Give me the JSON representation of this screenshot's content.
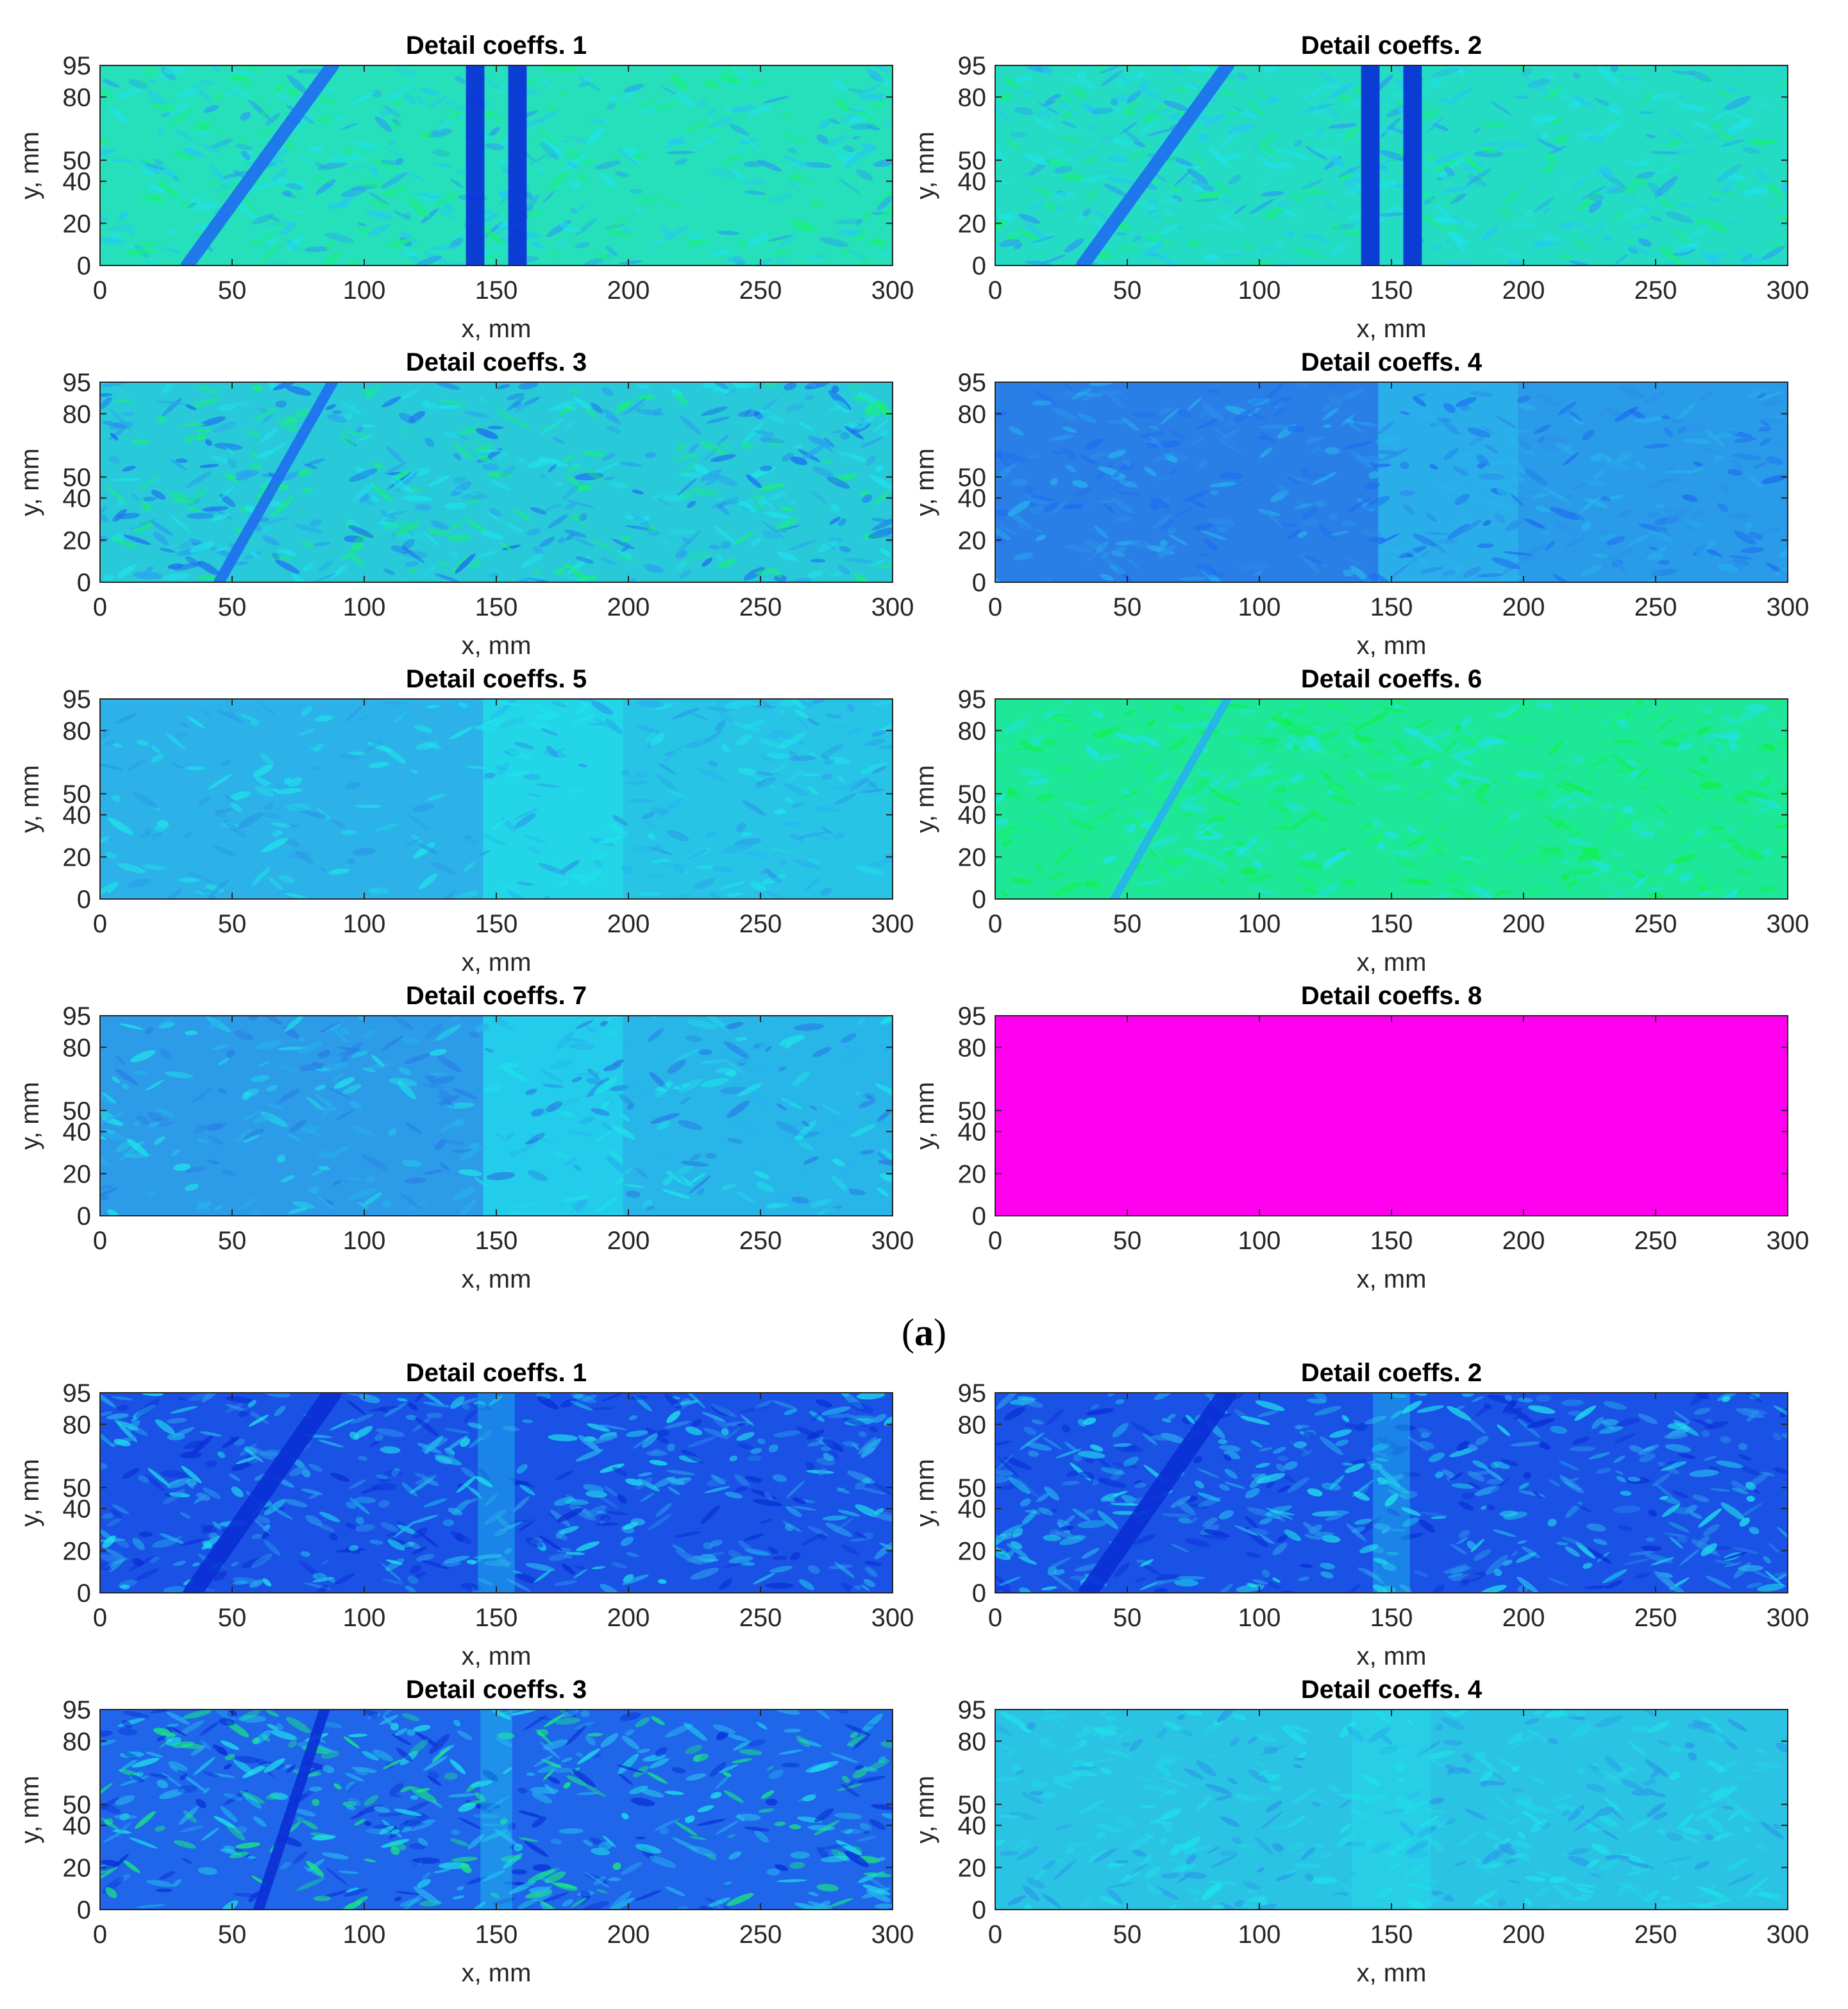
{
  "figure": {
    "subfigure_label_open": "(",
    "subfigure_label_letter": "a",
    "subfigure_label_close": ")"
  },
  "colormap": {
    "dark_blue": "#0a2fd6",
    "blue": "#1f6ef0",
    "light_blue": "#27b3ee",
    "cyan": "#1fe2ea",
    "green": "#18f07a",
    "magenta": "#ff00ee"
  },
  "chart_data": [
    {
      "id": "a1",
      "type": "heatmap",
      "title": "Detail coeffs. 1",
      "xlabel": "x, mm",
      "ylabel": "y, mm",
      "xlim": [
        0,
        300
      ],
      "ylim": [
        0,
        95
      ],
      "xticks": [
        0,
        50,
        100,
        150,
        200,
        250,
        300
      ],
      "yticks": [
        0,
        20,
        40,
        50,
        80,
        95
      ],
      "base_color": "#26e0bb",
      "noise_colors": [
        "#18f07a",
        "#25c8f0",
        "#1fe2ea",
        "#2aa2ee"
      ],
      "noise_density": 0.55,
      "zones": [],
      "features": [
        {
          "kind": "diagonal",
          "x0": 33,
          "x1": 88,
          "color": "#1f6ef0",
          "width": 5
        },
        {
          "kind": "vertical",
          "x": 142,
          "color": "#0a2fd6",
          "width": 7
        },
        {
          "kind": "vertical",
          "x": 158,
          "color": "#0a2fd6",
          "width": 7
        }
      ]
    },
    {
      "id": "a2",
      "type": "heatmap",
      "title": "Detail coeffs. 2",
      "xlabel": "x, mm",
      "ylabel": "y, mm",
      "xlim": [
        0,
        300
      ],
      "ylim": [
        0,
        95
      ],
      "xticks": [
        0,
        50,
        100,
        150,
        200,
        250,
        300
      ],
      "yticks": [
        0,
        20,
        40,
        50,
        80,
        95
      ],
      "base_color": "#24dcc4",
      "noise_colors": [
        "#18f07a",
        "#25c8f0",
        "#1fe2ea",
        "#2aa2ee"
      ],
      "noise_density": 0.55,
      "zones": [],
      "features": [
        {
          "kind": "diagonal",
          "x0": 33,
          "x1": 88,
          "color": "#1f6ef0",
          "width": 5
        },
        {
          "kind": "vertical",
          "x": 142,
          "color": "#0a2fd6",
          "width": 7
        },
        {
          "kind": "vertical",
          "x": 158,
          "color": "#0a2fd6",
          "width": 7
        }
      ]
    },
    {
      "id": "a3",
      "type": "heatmap",
      "title": "Detail coeffs. 3",
      "xlabel": "x, mm",
      "ylabel": "y, mm",
      "xlim": [
        0,
        300
      ],
      "ylim": [
        0,
        95
      ],
      "xticks": [
        0,
        50,
        100,
        150,
        200,
        250,
        300
      ],
      "yticks": [
        0,
        20,
        40,
        50,
        80,
        95
      ],
      "base_color": "#28c9d9",
      "noise_colors": [
        "#1f6ef0",
        "#18f07a",
        "#1fe2ea",
        "#2aa2ee"
      ],
      "noise_density": 0.6,
      "zones": [],
      "features": [
        {
          "kind": "diagonal",
          "x0": 45,
          "x1": 88,
          "color": "#1f6ef0",
          "width": 4
        }
      ]
    },
    {
      "id": "a4",
      "type": "heatmap",
      "title": "Detail coeffs. 4",
      "xlabel": "x, mm",
      "ylabel": "y, mm",
      "xlim": [
        0,
        300
      ],
      "ylim": [
        0,
        95
      ],
      "xticks": [
        0,
        50,
        100,
        150,
        200,
        250,
        300
      ],
      "yticks": [
        0,
        20,
        40,
        50,
        80,
        95
      ],
      "base_color": "#2a7fe6",
      "noise_colors": [
        "#1f6ef0",
        "#27b3ee",
        "#2a90ea"
      ],
      "noise_density": 0.5,
      "zones": [
        {
          "x0": 145,
          "x1": 198,
          "color": "#2aaeea"
        },
        {
          "x0": 198,
          "x1": 300,
          "color": "#2a9be8"
        }
      ],
      "features": []
    },
    {
      "id": "a5",
      "type": "heatmap",
      "title": "Detail coeffs. 5",
      "xlabel": "x, mm",
      "ylabel": "y, mm",
      "xlim": [
        0,
        300
      ],
      "ylim": [
        0,
        95
      ],
      "xticks": [
        0,
        50,
        100,
        150,
        200,
        250,
        300
      ],
      "yticks": [
        0,
        20,
        40,
        50,
        80,
        95
      ],
      "base_color": "#2cb2e8",
      "noise_colors": [
        "#27b3ee",
        "#1fe2ea",
        "#2a9be8"
      ],
      "noise_density": 0.45,
      "zones": [
        {
          "x0": 145,
          "x1": 198,
          "color": "#22d6e8"
        },
        {
          "x0": 198,
          "x1": 300,
          "color": "#28c4e6"
        }
      ],
      "features": []
    },
    {
      "id": "a6",
      "type": "heatmap",
      "title": "Detail coeffs. 6",
      "xlabel": "x, mm",
      "ylabel": "y, mm",
      "xlim": [
        0,
        300
      ],
      "ylim": [
        0,
        95
      ],
      "xticks": [
        0,
        50,
        100,
        150,
        200,
        250,
        300
      ],
      "yticks": [
        0,
        20,
        40,
        50,
        80,
        95
      ],
      "base_color": "#1ee79a",
      "noise_colors": [
        "#18f07a",
        "#1fe2ea",
        "#10f050"
      ],
      "noise_density": 0.55,
      "zones": [],
      "features": [
        {
          "kind": "diagonal",
          "x0": 45,
          "x1": 88,
          "color": "#27b3ee",
          "width": 3
        }
      ]
    },
    {
      "id": "a7",
      "type": "heatmap",
      "title": "Detail coeffs. 7",
      "xlabel": "x, mm",
      "ylabel": "y, mm",
      "xlim": [
        0,
        300
      ],
      "ylim": [
        0,
        95
      ],
      "xticks": [
        0,
        50,
        100,
        150,
        200,
        250,
        300
      ],
      "yticks": [
        0,
        20,
        40,
        50,
        80,
        95
      ],
      "base_color": "#2c9ce8",
      "noise_colors": [
        "#27b3ee",
        "#2a7fe6",
        "#1fe2ea"
      ],
      "noise_density": 0.45,
      "zones": [
        {
          "x0": 145,
          "x1": 198,
          "color": "#22ccea"
        },
        {
          "x0": 198,
          "x1": 300,
          "color": "#28b6e8"
        }
      ],
      "features": []
    },
    {
      "id": "a8",
      "type": "heatmap",
      "title": "Detail coeffs. 8",
      "xlabel": "x, mm",
      "ylabel": "y, mm",
      "xlim": [
        0,
        300
      ],
      "ylim": [
        0,
        95
      ],
      "xticks": [
        0,
        50,
        100,
        150,
        200,
        250,
        300
      ],
      "yticks": [
        0,
        20,
        40,
        50,
        80,
        95
      ],
      "base_color": "#ff00ee",
      "noise_colors": [],
      "noise_density": 0,
      "zones": [],
      "features": []
    },
    {
      "id": "b1",
      "type": "heatmap",
      "title": "Detail coeffs. 1",
      "xlabel": "x, mm",
      "ylabel": "y, mm",
      "xlim": [
        0,
        300
      ],
      "ylim": [
        0,
        95
      ],
      "xticks": [
        0,
        50,
        100,
        150,
        200,
        250,
        300
      ],
      "yticks": [
        0,
        20,
        40,
        50,
        80,
        95
      ],
      "base_color": "#1a52e6",
      "noise_colors": [
        "#27b3ee",
        "#1fe2ea",
        "#0a2fd6",
        "#2a90ea"
      ],
      "noise_density": 0.6,
      "zones": [],
      "features": [
        {
          "kind": "diagonal",
          "x0": 35,
          "x1": 88,
          "color": "#0a2fd6",
          "width": 7
        },
        {
          "kind": "band",
          "x": 150,
          "color": "#1fe2ea",
          "width": 14
        }
      ]
    },
    {
      "id": "b2",
      "type": "heatmap",
      "title": "Detail coeffs. 2",
      "xlabel": "x, mm",
      "ylabel": "y, mm",
      "xlim": [
        0,
        300
      ],
      "ylim": [
        0,
        95
      ],
      "xticks": [
        0,
        50,
        100,
        150,
        200,
        250,
        300
      ],
      "yticks": [
        0,
        20,
        40,
        50,
        80,
        95
      ],
      "base_color": "#1a52e6",
      "noise_colors": [
        "#27b3ee",
        "#1fe2ea",
        "#0a2fd6",
        "#2a90ea"
      ],
      "noise_density": 0.6,
      "zones": [],
      "features": [
        {
          "kind": "diagonal",
          "x0": 35,
          "x1": 88,
          "color": "#0a2fd6",
          "width": 7
        },
        {
          "kind": "band",
          "x": 150,
          "color": "#1fe2ea",
          "width": 14
        }
      ]
    },
    {
      "id": "b3",
      "type": "heatmap",
      "title": "Detail coeffs. 3",
      "xlabel": "x, mm",
      "ylabel": "y, mm",
      "xlim": [
        0,
        300
      ],
      "ylim": [
        0,
        95
      ],
      "xticks": [
        0,
        50,
        100,
        150,
        200,
        250,
        300
      ],
      "yticks": [
        0,
        20,
        40,
        50,
        80,
        95
      ],
      "base_color": "#1f66ea",
      "noise_colors": [
        "#27b3ee",
        "#1fe2ea",
        "#18f07a",
        "#0a2fd6"
      ],
      "noise_density": 0.6,
      "zones": [],
      "features": [
        {
          "kind": "diagonal",
          "x0": 60,
          "x1": 85,
          "color": "#0a2fd6",
          "width": 4
        },
        {
          "kind": "band",
          "x": 150,
          "color": "#1fe2ea",
          "width": 12
        }
      ]
    },
    {
      "id": "b4",
      "type": "heatmap",
      "title": "Detail coeffs. 4",
      "xlabel": "x, mm",
      "ylabel": "y, mm",
      "xlim": [
        0,
        300
      ],
      "ylim": [
        0,
        95
      ],
      "xticks": [
        0,
        50,
        100,
        150,
        200,
        250,
        300
      ],
      "yticks": [
        0,
        20,
        40,
        50,
        80,
        95
      ],
      "base_color": "#2bc3e4",
      "noise_colors": [
        "#1fe2ea",
        "#2a9be8",
        "#22d6e8"
      ],
      "noise_density": 0.5,
      "zones": [],
      "features": [
        {
          "kind": "band",
          "x": 150,
          "color": "#1fe2ea",
          "width": 30
        }
      ]
    }
  ]
}
